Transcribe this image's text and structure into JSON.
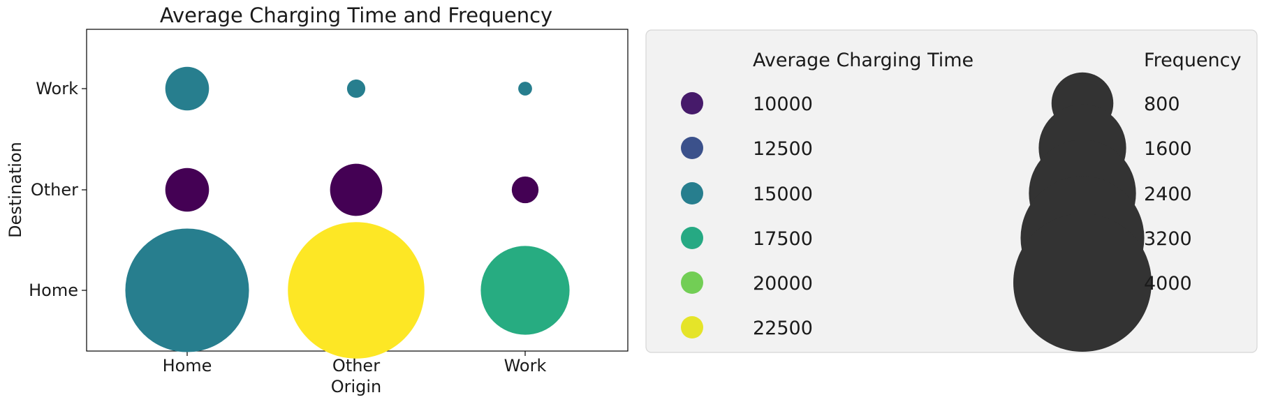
{
  "chart_data": {
    "type": "scatter",
    "title": "Average Charging Time and Frequency",
    "xlabel": "Origin",
    "ylabel": "Destination",
    "x_categories": [
      "Home",
      "Other",
      "Work"
    ],
    "y_categories": [
      "Home",
      "Other",
      "Work"
    ],
    "points": [
      {
        "origin": "Home",
        "destination": "Work",
        "avg_charging_time": 15000,
        "frequency": 400
      },
      {
        "origin": "Other",
        "destination": "Work",
        "avg_charging_time": 15000,
        "frequency": 70
      },
      {
        "origin": "Work",
        "destination": "Work",
        "avg_charging_time": 15000,
        "frequency": 40
      },
      {
        "origin": "Home",
        "destination": "Other",
        "avg_charging_time": 9000,
        "frequency": 400
      },
      {
        "origin": "Other",
        "destination": "Other",
        "avg_charging_time": 9000,
        "frequency": 570
      },
      {
        "origin": "Work",
        "destination": "Other",
        "avg_charging_time": 9000,
        "frequency": 150
      },
      {
        "origin": "Home",
        "destination": "Home",
        "avg_charging_time": 15000,
        "frequency": 3200
      },
      {
        "origin": "Other",
        "destination": "Home",
        "avg_charging_time": 23000,
        "frequency": 3900
      },
      {
        "origin": "Work",
        "destination": "Home",
        "avg_charging_time": 17700,
        "frequency": 1650
      }
    ],
    "color_scale": {
      "colormap": "viridis",
      "min": 9000,
      "max": 23000
    },
    "legend": {
      "placement": "right",
      "color_title": "Average Charging Time",
      "color_entries": [
        10000,
        12500,
        15000,
        17500,
        20000,
        22500
      ],
      "size_title": "Frequency",
      "size_entries": [
        800,
        1600,
        2400,
        3200,
        4000
      ],
      "size_marker_color": "#333333"
    },
    "grid": false
  }
}
